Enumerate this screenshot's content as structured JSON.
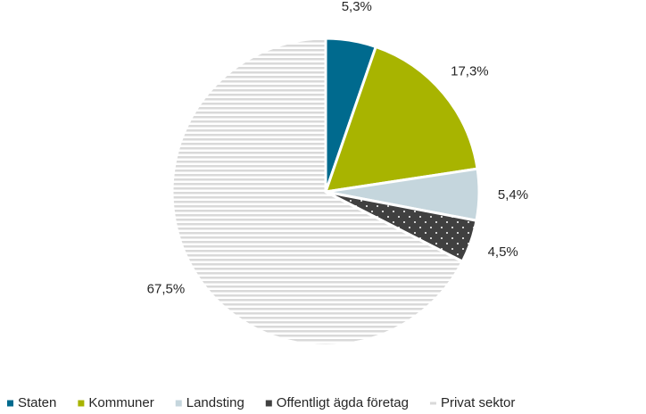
{
  "chart_data": {
    "type": "pie",
    "categories": [
      "Staten",
      "Kommuner",
      "Landsting",
      "Offentligt ägda företag",
      "Privat sektor"
    ],
    "values": [
      5.3,
      17.3,
      5.4,
      4.5,
      67.5
    ],
    "value_labels": [
      "5,3%",
      "17,3%",
      "5,4%",
      "4,5%",
      "67,5%"
    ],
    "colors": [
      "#006a8e",
      "#a8b400",
      "#c5d6dd",
      "#404040",
      "#d9d9d9"
    ],
    "patterns": [
      "solid",
      "solid",
      "solid",
      "dots",
      "stripes"
    ],
    "legend": "bottom"
  }
}
